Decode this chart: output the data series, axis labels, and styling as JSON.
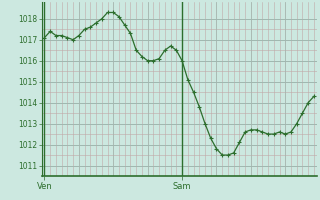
{
  "background_color": "#cce8e0",
  "plot_bg_color": "#cce8e0",
  "line_color": "#2d6e2d",
  "marker_color": "#2d6e2d",
  "ylim": [
    1010.5,
    1018.8
  ],
  "yticks": [
    1011,
    1012,
    1013,
    1014,
    1015,
    1016,
    1017,
    1018
  ],
  "xtick_labels": [
    "Ven",
    "Sam"
  ],
  "xtick_positions": [
    0,
    24
  ],
  "vline_positions": [
    0,
    24
  ],
  "x_values": [
    0,
    1,
    2,
    3,
    4,
    5,
    6,
    7,
    8,
    9,
    10,
    11,
    12,
    13,
    14,
    15,
    16,
    17,
    18,
    19,
    20,
    21,
    22,
    23,
    24,
    25,
    26,
    27,
    28,
    29,
    30,
    31,
    32,
    33,
    34,
    35,
    36,
    37,
    38,
    39,
    40,
    41,
    42,
    43,
    44,
    45,
    46,
    47
  ],
  "y_values": [
    1017.1,
    1017.4,
    1017.2,
    1017.2,
    1017.1,
    1017.0,
    1017.2,
    1017.5,
    1017.6,
    1017.8,
    1018.0,
    1018.3,
    1018.3,
    1018.1,
    1017.7,
    1017.3,
    1016.5,
    1016.2,
    1016.0,
    1016.0,
    1016.1,
    1016.5,
    1016.7,
    1016.5,
    1016.0,
    1015.1,
    1014.5,
    1013.8,
    1013.0,
    1012.3,
    1011.8,
    1011.5,
    1011.5,
    1011.6,
    1012.1,
    1012.6,
    1012.7,
    1012.7,
    1012.6,
    1012.5,
    1012.5,
    1012.6,
    1012.5,
    1012.6,
    1013.0,
    1013.5,
    1014.0,
    1014.3
  ],
  "xlim": [
    -0.5,
    47.5
  ]
}
